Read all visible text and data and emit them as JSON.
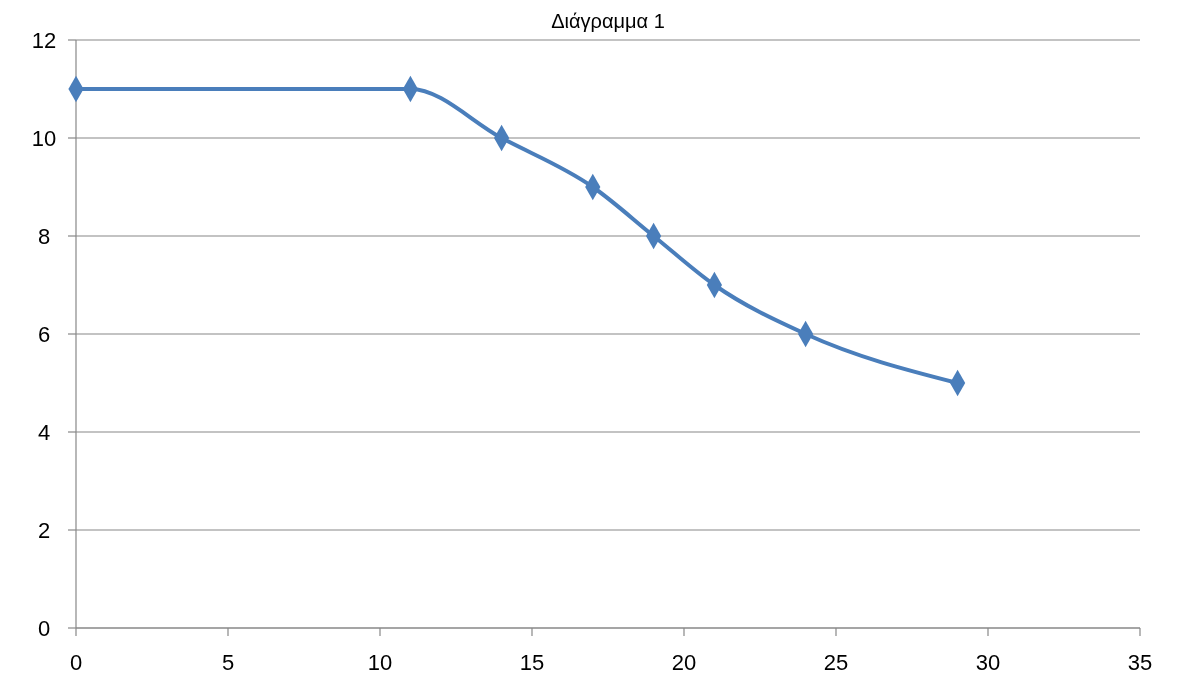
{
  "chart_data": {
    "type": "line",
    "title": "Διάγραμμα 1",
    "x": [
      0,
      11,
      14,
      17,
      19,
      21,
      24,
      29
    ],
    "series": [
      {
        "color": "#4a7ebb",
        "values": [
          11,
          11,
          10,
          9,
          8,
          7,
          6,
          5
        ]
      }
    ],
    "xlim": [
      0,
      35
    ],
    "xticks": [
      0,
      5,
      10,
      15,
      20,
      25,
      30,
      35
    ],
    "ylim": [
      0,
      12
    ],
    "yticks": [
      0,
      2,
      4,
      6,
      8,
      10,
      12
    ],
    "grid": "y",
    "marker": "diamond",
    "line_style": "solid"
  }
}
